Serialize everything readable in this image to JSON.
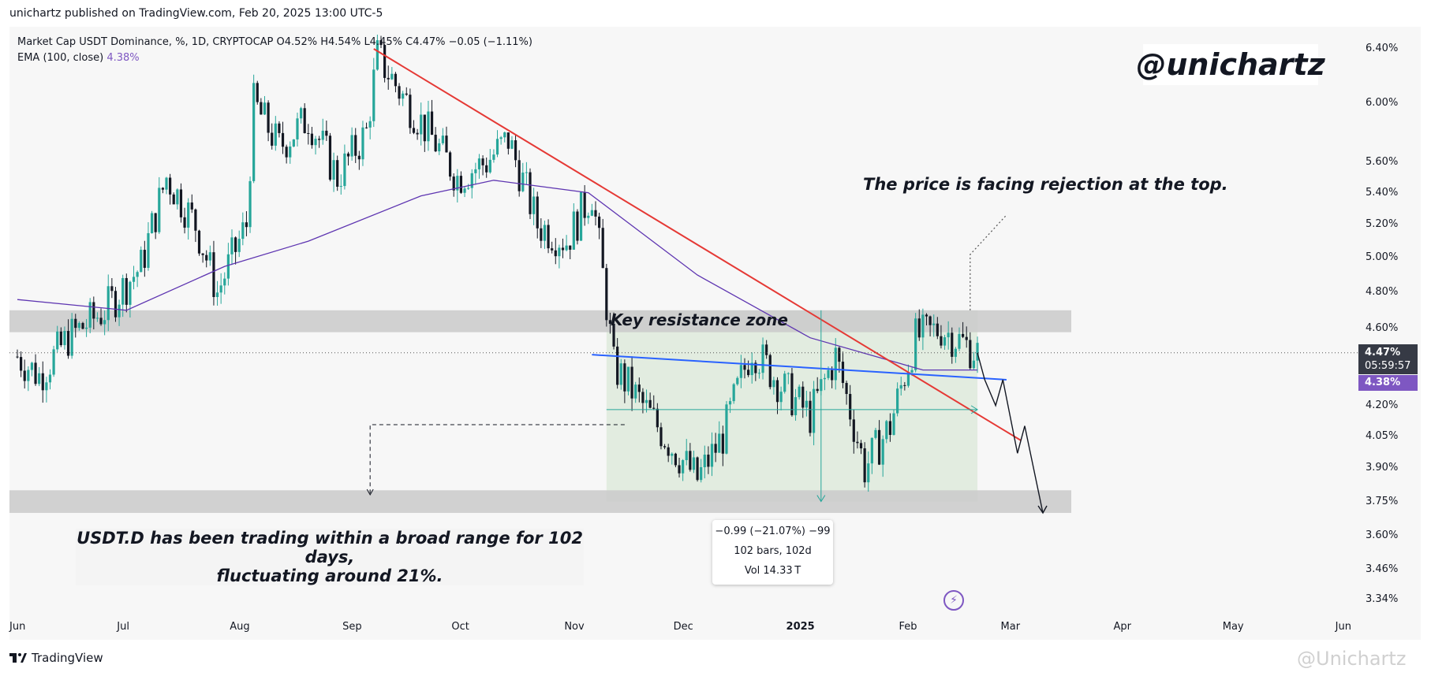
{
  "publisher_line": "unichartz published on TradingView.com, Feb 20, 2025 13:00 UTC-5",
  "legend": {
    "symbol": "Market Cap USDT Dominance, %, 1D, CRYPTOCAP",
    "open": "O4.52%",
    "high": "H4.54%",
    "low": "L4.45%",
    "close": "C4.47%",
    "change": "−0.05 (−1.11%)",
    "ema_label": "EMA (100, close)",
    "ema_value": "4.38%"
  },
  "watermark": "@unichartz",
  "annotations": {
    "rejection": "The price is facing rejection at the top.",
    "resistance": "Key resistance zone",
    "range_line1": "USDT.D has been trading within a broad range for 102 days,",
    "range_line2": "fluctuating around 21%."
  },
  "measure": {
    "line1": "−0.99 (−21.07%) −99",
    "line2": "102 bars, 102d",
    "line3": "Vol 14.33 T"
  },
  "price_tags": {
    "close": "4.47%",
    "countdown": "05:59:57",
    "ema": "4.38%"
  },
  "footer": {
    "brand": "TradingView",
    "watermark": "@Unichartz"
  },
  "colors": {
    "bull": "#26a69a",
    "bear": "#131722",
    "ema": "#5e35b1",
    "downtrend": "#e53935",
    "support": "#2962ff",
    "zone": "#cccccc",
    "range": "#e2ece0"
  },
  "chart_data": {
    "type": "candlestick",
    "title": "Market Cap USDT Dominance, %, 1D, CRYPTOCAP",
    "timeframe": "1D",
    "y_axis_ticks": [
      "6.40%",
      "6.00%",
      "5.60%",
      "5.40%",
      "5.20%",
      "5.00%",
      "4.80%",
      "4.60%",
      "4.20%",
      "4.05%",
      "3.90%",
      "3.75%",
      "3.60%",
      "3.46%",
      "3.34%"
    ],
    "x_axis_ticks": [
      "Jun",
      "Jul",
      "Aug",
      "Sep",
      "Oct",
      "Nov",
      "Dec",
      "2025",
      "Feb",
      "Mar",
      "Apr",
      "May",
      "Jun"
    ],
    "ylim": [
      3.3,
      6.5
    ],
    "price_path": [
      {
        "date": "2024-06-01",
        "value": 4.45
      },
      {
        "date": "2024-06-07",
        "value": 4.35
      },
      {
        "date": "2024-06-15",
        "value": 4.55
      },
      {
        "date": "2024-06-25",
        "value": 4.7
      },
      {
        "date": "2024-07-05",
        "value": 4.95
      },
      {
        "date": "2024-07-12",
        "value": 5.5
      },
      {
        "date": "2024-07-20",
        "value": 5.2
      },
      {
        "date": "2024-07-26",
        "value": 4.8
      },
      {
        "date": "2024-08-03",
        "value": 5.2
      },
      {
        "date": "2024-08-05",
        "value": 6.0
      },
      {
        "date": "2024-08-12",
        "value": 5.7
      },
      {
        "date": "2024-08-20",
        "value": 5.9
      },
      {
        "date": "2024-08-28",
        "value": 5.5
      },
      {
        "date": "2024-09-05",
        "value": 5.8
      },
      {
        "date": "2024-09-08",
        "value": 6.35
      },
      {
        "date": "2024-09-15",
        "value": 6.05
      },
      {
        "date": "2024-09-22",
        "value": 5.8
      },
      {
        "date": "2024-09-30",
        "value": 5.5
      },
      {
        "date": "2024-10-08",
        "value": 5.6
      },
      {
        "date": "2024-10-14",
        "value": 5.75
      },
      {
        "date": "2024-10-22",
        "value": 5.2
      },
      {
        "date": "2024-10-30",
        "value": 5.1
      },
      {
        "date": "2024-11-06",
        "value": 5.4
      },
      {
        "date": "2024-11-12",
        "value": 4.4
      },
      {
        "date": "2024-11-20",
        "value": 4.2
      },
      {
        "date": "2024-11-28",
        "value": 4.0
      },
      {
        "date": "2024-12-05",
        "value": 3.85
      },
      {
        "date": "2024-12-12",
        "value": 4.05
      },
      {
        "date": "2024-12-20",
        "value": 4.5
      },
      {
        "date": "2024-12-28",
        "value": 4.3
      },
      {
        "date": "2025-01-05",
        "value": 4.15
      },
      {
        "date": "2025-01-12",
        "value": 4.45
      },
      {
        "date": "2025-01-20",
        "value": 3.9
      },
      {
        "date": "2025-01-27",
        "value": 4.1
      },
      {
        "date": "2025-02-03",
        "value": 4.55
      },
      {
        "date": "2025-02-10",
        "value": 4.6
      },
      {
        "date": "2025-02-20",
        "value": 4.47
      }
    ],
    "ema_100_path": [
      {
        "date": "2024-06-01",
        "value": 4.76
      },
      {
        "date": "2024-07-01",
        "value": 4.7
      },
      {
        "date": "2024-07-28",
        "value": 4.95
      },
      {
        "date": "2024-08-20",
        "value": 5.1
      },
      {
        "date": "2024-09-20",
        "value": 5.38
      },
      {
        "date": "2024-10-10",
        "value": 5.48
      },
      {
        "date": "2024-11-05",
        "value": 5.4
      },
      {
        "date": "2024-12-05",
        "value": 4.9
      },
      {
        "date": "2025-01-05",
        "value": 4.55
      },
      {
        "date": "2025-02-05",
        "value": 4.38
      },
      {
        "date": "2025-02-20",
        "value": 4.38
      }
    ],
    "ema_current": 4.38,
    "last_close": 4.47,
    "resistance_zone": [
      4.58,
      4.7
    ],
    "support_zone": [
      3.7,
      3.8
    ],
    "range_box": {
      "from": "2024-11-10",
      "to": "2025-02-20",
      "low": 3.75,
      "high": 4.7
    }
  }
}
